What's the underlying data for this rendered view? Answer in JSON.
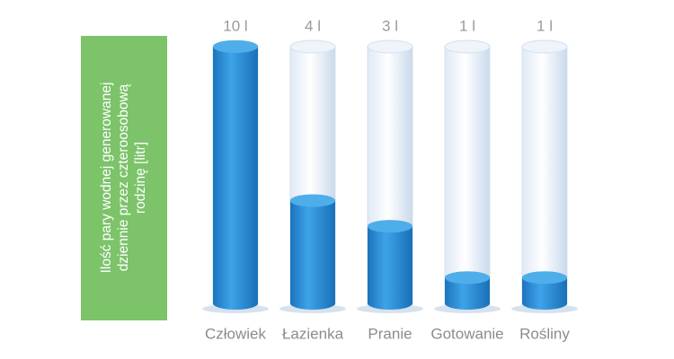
{
  "chart_data": {
    "type": "bar",
    "ylabel": [
      "Ilość pary wodnej generowanej",
      "dziennie przez czteroosobową",
      "rodzinę [litr]"
    ],
    "categories": [
      "Człowiek",
      "Łazienka",
      "Pranie",
      "Gotowanie",
      "Rośliny"
    ],
    "values": [
      10,
      4,
      3,
      1,
      1
    ],
    "value_labels": [
      "10 l",
      "4 l",
      "3 l",
      "1 l",
      "1 l"
    ],
    "color": "#2a8dd6",
    "ylim": [
      0,
      10
    ]
  }
}
